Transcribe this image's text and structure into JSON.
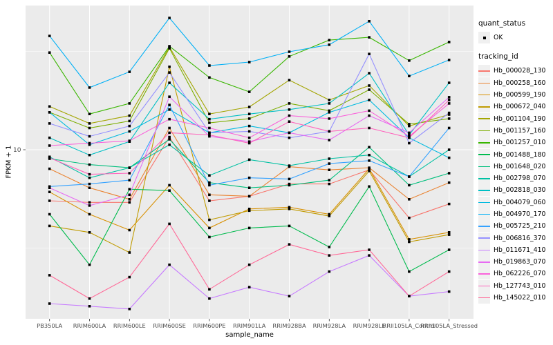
{
  "chart": {
    "y_axis_title": "FPKM + 1",
    "x_axis_title": "sample_name",
    "y_tick_label": "10",
    "legend": {
      "quant_status_title": "quant_status",
      "ok_label": "OK",
      "tracking_id_title": "tracking_id"
    }
  },
  "chart_data": {
    "type": "line",
    "title": "",
    "xlabel": "sample_name",
    "ylabel": "FPKM + 1",
    "y_scale": "log10",
    "y_ticks": [
      10
    ],
    "grid": "white major and minor gridlines on gray panel",
    "legend_position": "right",
    "point_marker": "filled-black-square",
    "quant_status": "OK",
    "categories": [
      "PB350LA",
      "RRIM600LA",
      "RRIM600LE",
      "RRIM600SE",
      "RRIM600PE",
      "RRIM901LA",
      "RRIM928BA",
      "RRIM928LA",
      "RRIM928LE",
      "RRII105LA_Control",
      "RRII105LA_Stressed"
    ],
    "series": [
      {
        "name": "Hb_000028_130",
        "color": "#F8766D",
        "values": [
          5.5,
          5.4,
          5.4,
          11.6,
          5.5,
          5.8,
          6.7,
          6.7,
          7.9,
          4.5,
          5.3
        ]
      },
      {
        "name": "Hb_000258_160",
        "color": "#EA8331",
        "values": [
          8.0,
          6.4,
          5.6,
          12.9,
          5.9,
          5.8,
          8.2,
          7.9,
          8.1,
          5.6,
          6.8
        ]
      },
      {
        "name": "Hb_000599_190",
        "color": "#D89000",
        "values": [
          6.1,
          4.7,
          3.9,
          6.6,
          4.0,
          5.0,
          5.1,
          4.7,
          8.0,
          3.5,
          3.8
        ]
      },
      {
        "name": "Hb_000672_040",
        "color": "#C09B00",
        "values": [
          4.1,
          3.8,
          3.0,
          26.4,
          4.4,
          4.9,
          5.0,
          4.6,
          7.8,
          3.4,
          3.7
        ]
      },
      {
        "name": "Hb_001104_190",
        "color": "#A3A500",
        "values": [
          16.6,
          13.6,
          14.9,
          33.3,
          15.2,
          16.5,
          22.6,
          17.9,
          21.2,
          13.2,
          15.1
        ]
      },
      {
        "name": "Hb_001157_160",
        "color": "#7CAE00",
        "values": [
          15.5,
          12.9,
          14.0,
          32.8,
          13.7,
          14.4,
          17.2,
          15.8,
          20.2,
          13.5,
          14.4
        ]
      },
      {
        "name": "Hb_001257_010",
        "color": "#39B600",
        "values": [
          31.2,
          15.2,
          17.2,
          33.6,
          23.3,
          19.7,
          29.8,
          36.1,
          37.3,
          28.4,
          35.3
        ]
      },
      {
        "name": "Hb_001488_180",
        "color": "#00BB4E",
        "values": [
          4.7,
          2.6,
          6.3,
          6.2,
          3.6,
          4.0,
          4.1,
          3.2,
          6.5,
          2.4,
          3.1
        ]
      },
      {
        "name": "Hb_001648_020",
        "color": "#00BF7D",
        "values": [
          9.0,
          8.4,
          8.1,
          11.3,
          6.8,
          6.4,
          6.6,
          7.0,
          10.3,
          6.6,
          7.6
        ]
      },
      {
        "name": "Hb_002798_070",
        "color": "#00C1A3",
        "values": [
          9.2,
          7.2,
          8.1,
          10.6,
          7.4,
          8.9,
          8.3,
          9.0,
          9.4,
          7.3,
          10.0
        ]
      },
      {
        "name": "Hb_002818_030",
        "color": "#00BFC4",
        "values": [
          11.5,
          9.4,
          11.0,
          21.9,
          14.3,
          15.2,
          16.0,
          17.2,
          24.5,
          11.9,
          21.9
        ]
      },
      {
        "name": "Hb_004079_060",
        "color": "#00BAE0",
        "values": [
          15.5,
          10.6,
          12.4,
          16.0,
          12.2,
          13.2,
          12.2,
          15.5,
          17.9,
          11.5,
          9.1
        ]
      },
      {
        "name": "Hb_004970_170",
        "color": "#00B0F6",
        "values": [
          37.9,
          20.7,
          24.9,
          46.8,
          26.8,
          27.9,
          31.5,
          34.2,
          45.0,
          23.7,
          28.6
        ]
      },
      {
        "name": "Hb_005725_210",
        "color": "#35A2FF",
        "values": [
          6.5,
          6.7,
          7.0,
          16.9,
          6.6,
          7.2,
          7.1,
          8.5,
          8.8,
          7.3,
          12.9
        ]
      },
      {
        "name": "Hb_006816_370",
        "color": "#9590FF",
        "values": [
          13.6,
          11.7,
          13.2,
          24.7,
          12.2,
          12.4,
          11.5,
          12.4,
          30.7,
          10.8,
          15.4
        ]
      },
      {
        "name": "Hb_011671_410",
        "color": "#C77CFF",
        "values": [
          1.65,
          1.6,
          1.55,
          2.6,
          1.75,
          2.0,
          1.8,
          2.4,
          2.9,
          1.8,
          1.9
        ]
      },
      {
        "name": "Hb_019863_070",
        "color": "#E76BF3",
        "values": [
          6.4,
          5.2,
          5.9,
          18.6,
          11.7,
          11.0,
          12.2,
          11.2,
          14.9,
          12.2,
          18.5
        ]
      },
      {
        "name": "Hb_062226_070",
        "color": "#FA62DB",
        "values": [
          10.5,
          10.8,
          11.1,
          14.3,
          12.9,
          11.5,
          14.9,
          14.4,
          15.8,
          11.7,
          17.2
        ]
      },
      {
        "name": "Hb_127743_010",
        "color": "#FF62BC",
        "values": [
          9.1,
          7.5,
          7.6,
          12.2,
          11.9,
          10.8,
          13.9,
          12.4,
          12.9,
          11.5,
          17.9
        ]
      },
      {
        "name": "Hb_145022_010",
        "color": "#FF6A98",
        "values": [
          2.3,
          1.75,
          2.25,
          4.2,
          1.95,
          2.6,
          3.3,
          2.9,
          3.1,
          1.8,
          2.4
        ]
      }
    ],
    "style": {
      "panel_background": "#EBEBEB",
      "grid_color": "#FFFFFF",
      "axis_text_color": "#4D4D4D",
      "tick_color": "#333333",
      "point_color": "#000000",
      "legend_key_background": "#F0F0F0"
    }
  }
}
